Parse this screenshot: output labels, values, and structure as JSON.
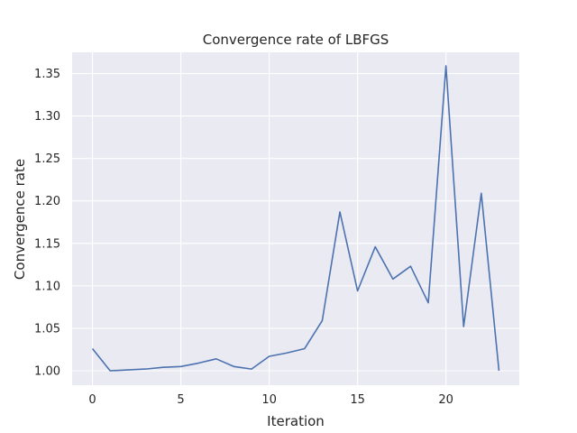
{
  "chart_data": {
    "type": "line",
    "title": "Convergence rate of LBFGS",
    "xlabel": "Iteration",
    "ylabel": "Convergence rate",
    "xlim": [
      -1.15,
      24.15
    ],
    "ylim": [
      0.983,
      1.375
    ],
    "xticks": [
      0,
      5,
      10,
      15,
      20
    ],
    "yticks": [
      1.0,
      1.05,
      1.1,
      1.15,
      1.2,
      1.25,
      1.3,
      1.35
    ],
    "grid": true,
    "series": [
      {
        "name": "convergence rate",
        "color": "#4c72b0",
        "x": [
          0,
          1,
          2,
          3,
          4,
          5,
          6,
          7,
          8,
          9,
          10,
          11,
          12,
          13,
          14,
          15,
          16,
          17,
          18,
          19,
          20,
          21,
          22,
          23
        ],
        "y": [
          1.026,
          1.0,
          1.001,
          1.002,
          1.004,
          1.005,
          1.009,
          1.014,
          1.005,
          1.002,
          1.017,
          1.021,
          1.026,
          1.059,
          1.187,
          1.094,
          1.146,
          1.108,
          1.123,
          1.08,
          1.359,
          1.052,
          1.209,
          1.0
        ]
      }
    ]
  }
}
